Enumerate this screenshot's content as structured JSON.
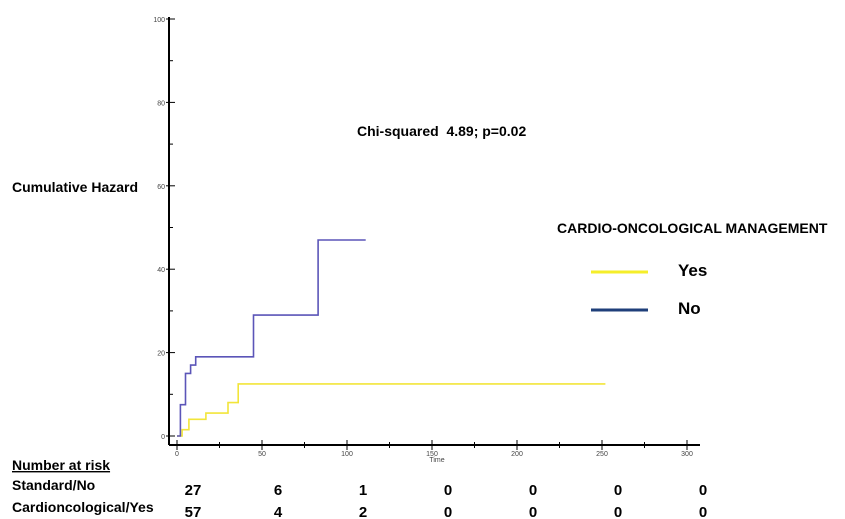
{
  "chart_data": {
    "type": "line",
    "step": true,
    "ylabel": "Cumulative Hazard",
    "xlabel": "Time",
    "xlim": [
      0,
      300
    ],
    "ylim": [
      0,
      100
    ],
    "x_ticks": [
      0,
      50,
      100,
      150,
      200,
      250,
      300
    ],
    "x_tick_labels": [
      "0",
      "50",
      "100",
      "150",
      "200",
      "250",
      "300"
    ],
    "y_ticks": [
      0,
      20,
      40,
      60,
      80,
      100
    ],
    "y_tick_labels": [
      "0",
      "20",
      "40",
      "60",
      "80",
      "100"
    ],
    "annotation": "Chi-squared  4.89; p=0.02",
    "legend_title": "CARDIO-ONCOLOGICAL MANAGEMENT",
    "legend_position": "right",
    "series": [
      {
        "name": "Yes",
        "color": "#f2e53a",
        "x": [
          0,
          3,
          3,
          7,
          7,
          17,
          17,
          30,
          30,
          36,
          36,
          252
        ],
        "y": [
          0,
          0,
          1.5,
          1.5,
          4,
          4,
          5.5,
          5.5,
          8,
          8,
          12.5,
          12.5
        ]
      },
      {
        "name": "No",
        "color": "#5b55b8",
        "x": [
          0,
          2,
          2,
          5,
          5,
          8,
          8,
          11,
          11,
          45,
          45,
          83,
          83,
          111
        ],
        "y": [
          0,
          0,
          7.5,
          7.5,
          15,
          15,
          17,
          17,
          19,
          19,
          29,
          29,
          47,
          47
        ]
      }
    ],
    "legend_swatches": [
      {
        "label": "Yes",
        "color": "#f5ee2a"
      },
      {
        "label": "No",
        "color": "#1f3f7a"
      }
    ]
  },
  "risk_table": {
    "title": "Number at risk",
    "rows": [
      {
        "label": "Standard/No",
        "values": [
          "27",
          "6",
          "1",
          "0",
          "0",
          "0",
          "0"
        ]
      },
      {
        "label": "Cardioncological/Yes",
        "values": [
          "57",
          "4",
          "2",
          "0",
          "0",
          "0",
          "0"
        ]
      }
    ]
  }
}
